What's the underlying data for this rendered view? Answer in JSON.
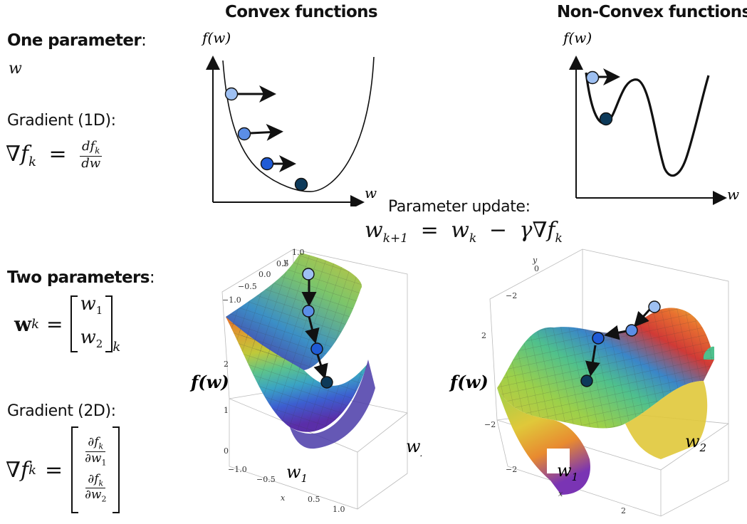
{
  "headers": {
    "convex": "Convex functions",
    "nonconvex": "Non-Convex functions"
  },
  "left": {
    "one_param": "One parameter",
    "colon": ":",
    "w": "w",
    "gradient_1d": "Gradient (1D):",
    "grad_symbol": "∇",
    "f": "f",
    "k": "k",
    "eq": "=",
    "df": "df",
    "dw": "dw",
    "two_params": "Two parameters",
    "bold_w": "w",
    "w1": "w",
    "w2": "w",
    "sub1": "1",
    "sub2": "2",
    "gradient_2d": "Gradient (2D):",
    "partial": "∂"
  },
  "update": {
    "title": "Parameter update:",
    "lhs": "w",
    "lhs_sub": "k+1",
    "rhs_w": "w",
    "minus": "−",
    "gamma": "γ",
    "nabla": "∇",
    "f": "f",
    "k": "k"
  },
  "axes": {
    "fw": "f(w)",
    "w": "w",
    "fbw": "f(w)",
    "w1": "w",
    "w2": "w",
    "sub1": "1",
    "sub2": "2",
    "x": "x",
    "y": "y"
  },
  "ticks_left3d": {
    "y": [
      "1.0",
      "0.5",
      "0.0",
      "−0.5",
      "−1.0"
    ],
    "z": [
      "2",
      "1",
      "0"
    ],
    "x": [
      "−1.0",
      "−0.5",
      "0.5",
      "1.0"
    ]
  },
  "ticks_right3d": {
    "y": [
      "0",
      "−2",
      "2"
    ],
    "z": [
      "2",
      "−2"
    ],
    "x": [
      "−2",
      "2"
    ]
  },
  "colors": {
    "dot_light": "#9ec0f2",
    "dot_mid": "#5b8ee6",
    "dot_blue": "#1f5bd6",
    "dot_dark": "#0d3a5a"
  }
}
